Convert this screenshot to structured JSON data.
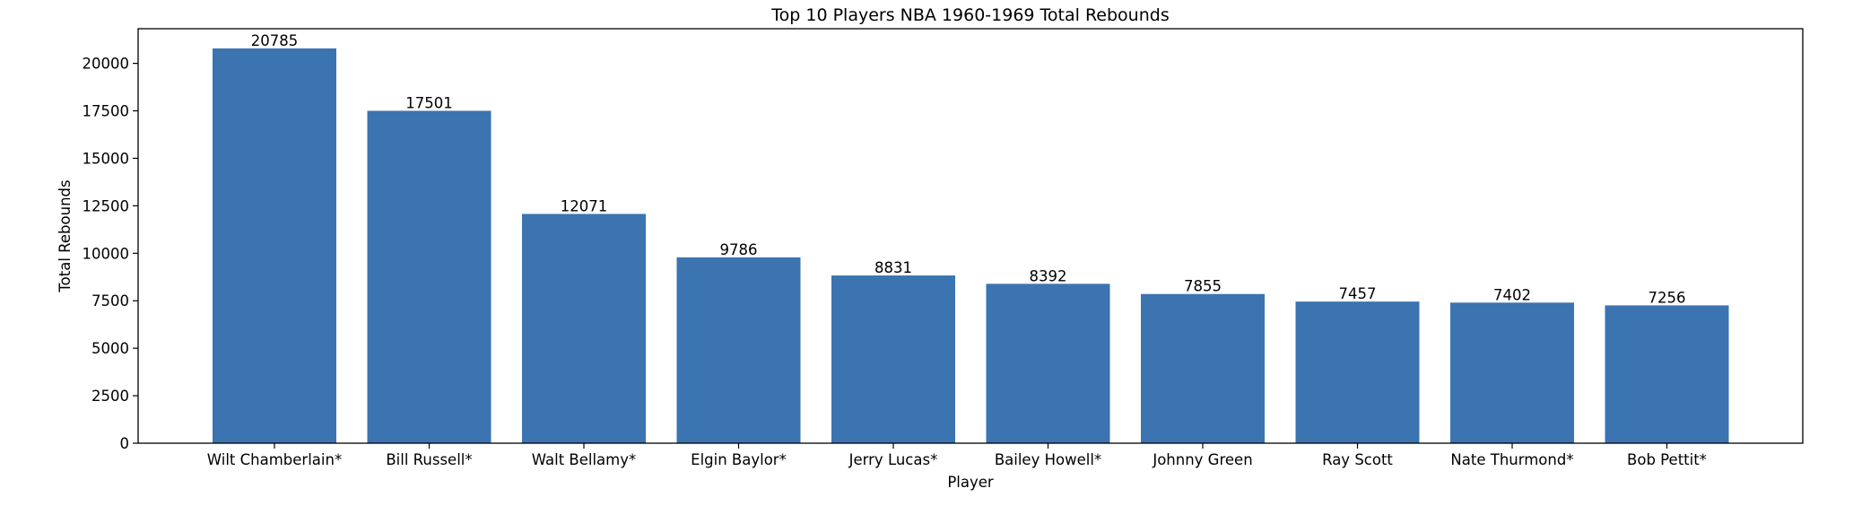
{
  "chart_data": {
    "type": "bar",
    "title": "Top 10 Players NBA 1960-1969 Total Rebounds",
    "xlabel": "Player",
    "ylabel": "Total Rebounds",
    "categories": [
      "Wilt Chamberlain*",
      "Bill Russell*",
      "Walt Bellamy*",
      "Elgin Baylor*",
      "Jerry Lucas*",
      "Bailey Howell*",
      "Johnny Green",
      "Ray Scott",
      "Nate Thurmond*",
      "Bob Pettit*"
    ],
    "values": [
      20785,
      17501,
      12071,
      9786,
      8831,
      8392,
      7855,
      7457,
      7402,
      7256
    ],
    "ylim": [
      0,
      21824
    ],
    "yticks": [
      0,
      2500,
      5000,
      7500,
      10000,
      12500,
      15000,
      17500,
      20000
    ],
    "bar_color": "#3b74b0",
    "grid": false,
    "legend": "none"
  }
}
